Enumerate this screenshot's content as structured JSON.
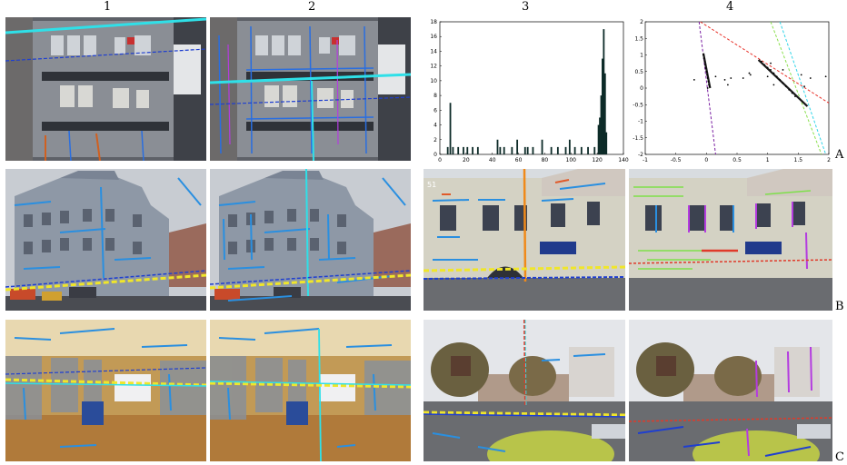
{
  "figure": {
    "column_labels": [
      "1",
      "2",
      "3",
      "4"
    ],
    "row_labels": [
      "A",
      "B",
      "C"
    ],
    "overlay_text": "51"
  },
  "chart_data": [
    {
      "type": "bar",
      "title": "",
      "xlabel": "",
      "ylabel": "",
      "xlim": [
        0,
        140
      ],
      "ylim": [
        0,
        18
      ],
      "xticks": [
        0,
        20,
        40,
        60,
        80,
        100,
        120,
        140
      ],
      "yticks": [
        0,
        2,
        4,
        6,
        8,
        10,
        12,
        14,
        16,
        18
      ],
      "x": [
        6,
        8,
        10,
        14,
        18,
        21,
        25,
        29,
        44,
        46,
        49,
        55,
        59,
        65,
        67,
        71,
        78,
        85,
        90,
        96,
        99,
        103,
        108,
        113,
        118,
        121,
        122,
        123,
        124,
        125,
        126,
        127
      ],
      "values": [
        1,
        7,
        1,
        1,
        1,
        1,
        1,
        1,
        2,
        1,
        1,
        1,
        2,
        1,
        1,
        1,
        2,
        1,
        1,
        1,
        2,
        1,
        1,
        1,
        1,
        4,
        5,
        8,
        13,
        17,
        11,
        3
      ]
    },
    {
      "type": "scatter",
      "title": "",
      "xlabel": "",
      "ylabel": "",
      "xlim": [
        -1,
        2
      ],
      "ylim": [
        -2,
        2
      ],
      "xticks": [
        -1,
        -0.5,
        0,
        0.5,
        1,
        1.5,
        2
      ],
      "yticks": [
        -2,
        -1.5,
        -1,
        -0.5,
        0,
        0.5,
        1,
        1.5,
        2
      ],
      "points": [
        [
          -0.05,
          1.0
        ],
        [
          -0.04,
          0.9
        ],
        [
          -0.03,
          0.8
        ],
        [
          -0.02,
          0.7
        ],
        [
          -0.01,
          0.6
        ],
        [
          0.0,
          0.5
        ],
        [
          0.01,
          0.4
        ],
        [
          0.02,
          0.3
        ],
        [
          0.03,
          0.2
        ],
        [
          0.04,
          0.1
        ],
        [
          0.05,
          0.05
        ],
        [
          0.02,
          0.0
        ],
        [
          0.9,
          0.8
        ],
        [
          0.95,
          0.7
        ],
        [
          1.0,
          0.62
        ],
        [
          1.05,
          0.55
        ],
        [
          1.1,
          0.45
        ],
        [
          1.15,
          0.35
        ],
        [
          1.2,
          0.25
        ],
        [
          1.25,
          0.15
        ],
        [
          1.3,
          0.05
        ],
        [
          1.35,
          -0.05
        ],
        [
          1.4,
          -0.15
        ],
        [
          1.45,
          -0.25
        ],
        [
          0.7,
          0.45
        ],
        [
          0.72,
          0.4
        ],
        [
          0.6,
          0.3
        ],
        [
          0.3,
          0.25
        ],
        [
          0.35,
          0.1
        ],
        [
          -0.2,
          0.25
        ],
        [
          1.0,
          0.35
        ],
        [
          1.1,
          0.1
        ],
        [
          1.55,
          0.4
        ],
        [
          1.7,
          0.3
        ],
        [
          1.95,
          0.35
        ],
        [
          1.6,
          0.05
        ],
        [
          0.4,
          0.3
        ],
        [
          1.25,
          0.55
        ],
        [
          0.15,
          0.35
        ],
        [
          1.05,
          0.75
        ]
      ],
      "lines": [
        {
          "color": "#7a1fa2",
          "style": "dashed",
          "from": [
            -0.12,
            2.0
          ],
          "to": [
            0.15,
            -2.0
          ]
        },
        {
          "color": "#e8322a",
          "style": "dashed",
          "from": [
            -0.1,
            2.0
          ],
          "to": [
            2.0,
            -0.45
          ]
        },
        {
          "color": "#8be04e",
          "style": "dashed",
          "from": [
            1.05,
            2.0
          ],
          "to": [
            1.88,
            -2.0
          ]
        },
        {
          "color": "#30d5e8",
          "style": "dashed",
          "from": [
            1.2,
            2.0
          ],
          "to": [
            1.95,
            -2.0
          ]
        },
        {
          "color": "#1a1a1a",
          "style": "solid",
          "from": [
            0.85,
            0.85
          ],
          "to": [
            1.65,
            -0.55
          ]
        },
        {
          "color": "#1a1a1a",
          "style": "solid",
          "from": [
            -0.05,
            1.05
          ],
          "to": [
            0.06,
            0.0
          ]
        }
      ]
    }
  ],
  "colors": {
    "cyan": "#2fe0e8",
    "blue_dash": "#1f3fd0",
    "yellow": "#f0e62a",
    "seg_blue": "#2a8fe0",
    "magenta": "#b43ce0",
    "green": "#7ee04a",
    "red": "#e03a2a",
    "orange": "#f08a1a"
  }
}
